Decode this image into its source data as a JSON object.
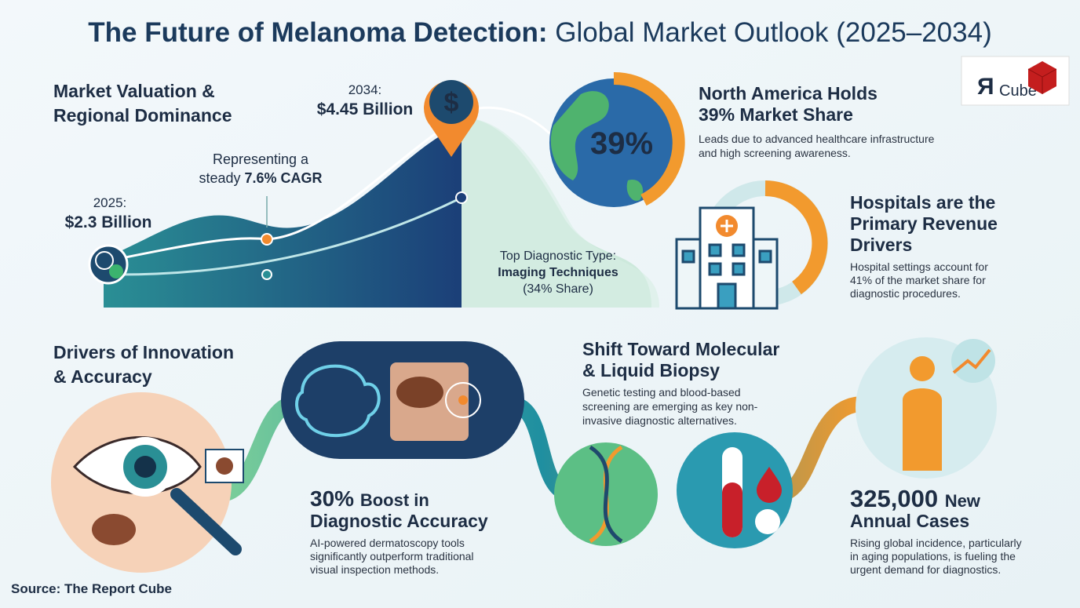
{
  "title": {
    "bold": "The Future of Melanoma Detection:",
    "rest": "Global Market Outlook (2025–2034)"
  },
  "logo": {
    "mark": "Я",
    "text": "Cube"
  },
  "valuation": {
    "heading": [
      "Market Valuation &",
      "Regional Dominance"
    ],
    "start_year": "2025:",
    "start_value": "$2.3 Billion",
    "end_year": "2034:",
    "end_value": "$4.45 Billion",
    "cagr_line1": "Representing a",
    "cagr_prefix": "steady",
    "cagr": "7.6% CAGR",
    "diag_label": "Top Diagnostic Type:",
    "diag_type": "Imaging Techniques",
    "diag_share": "(34% Share)",
    "pin_symbol": "$"
  },
  "north_america": {
    "badge": "39%",
    "heading": [
      "North America Holds",
      "39% Market Share"
    ],
    "body": [
      "Leads due to advanced healthcare infrastructure",
      "and high screening awareness."
    ]
  },
  "hospitals": {
    "heading": [
      "Hospitals are the",
      "Primary Revenue",
      "Drivers"
    ],
    "body": [
      "Hospital settings account for",
      "41% of the market share for",
      "diagnostic procedures."
    ]
  },
  "innovation": {
    "heading": [
      "Drivers of Innovation",
      "& Accuracy"
    ],
    "stat": "30%",
    "stat_rest": "Boost in",
    "stat_line2": "Diagnostic Accuracy",
    "body": [
      "AI-powered dermatoscopy tools",
      "significantly outperform traditional",
      "visual inspection methods."
    ]
  },
  "biopsy": {
    "heading": [
      "Shift Toward Molecular",
      "& Liquid Biopsy"
    ],
    "body": [
      "Genetic testing and blood-based",
      "screening are emerging as key non-",
      "invasive diagnostic alternatives."
    ]
  },
  "cases": {
    "stat": "325,000",
    "stat_rest": "New",
    "stat_line2": "Annual Cases",
    "body": [
      "Rising global incidence, particularly",
      "in aging populations, is fueling the",
      "urgent demand for diagnostics."
    ]
  },
  "source": "Source: The Report Cube"
}
